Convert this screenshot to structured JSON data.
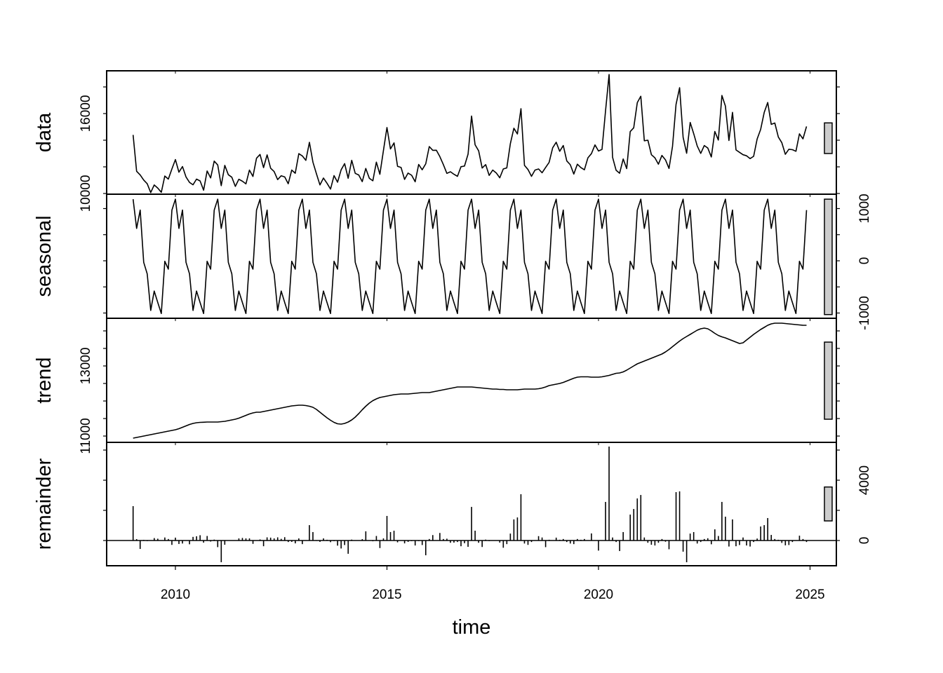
{
  "chart_data": {
    "type": "line",
    "title": "",
    "description": "STL decomposition of a monthly time series into data, seasonal, trend and remainder components",
    "xlabel": "time",
    "x_start": 2009.0,
    "frequency": 12,
    "x_ticks": [
      2010,
      2015,
      2020,
      2025
    ],
    "x_tick_labels": [
      "2010",
      "2015",
      "2020",
      "2025"
    ],
    "panels": [
      {
        "name": "data",
        "label": "data",
        "style": "line",
        "axis_side": "left",
        "tick_labels": [
          {
            "value": 10000,
            "label": "10000"
          },
          {
            "value": 16000,
            "label": "16000"
          }
        ],
        "minor_ticks": [
          10000,
          12000,
          14000,
          16000,
          18000
        ],
        "range_bar": [
          13000,
          15300
        ]
      },
      {
        "name": "seasonal",
        "label": "seasonal",
        "style": "line",
        "axis_side": "right",
        "tick_labels": [
          {
            "value": -1000,
            "label": "-1000"
          },
          {
            "value": 0,
            "label": "0"
          },
          {
            "value": 1000,
            "label": "1000"
          }
        ],
        "minor_ticks": [
          -1000,
          -500,
          0,
          500,
          1000
        ],
        "range_bar": [
          -1030,
          1180
        ]
      },
      {
        "name": "trend",
        "label": "trend",
        "style": "line",
        "axis_side": "left",
        "tick_labels": [
          {
            "value": 11000,
            "label": "11000"
          },
          {
            "value": 13000,
            "label": "13000"
          }
        ],
        "minor_ticks": [
          11000,
          11500,
          12000,
          12500,
          13000,
          13500,
          14000
        ],
        "range_bar": [
          11480,
          13680
        ]
      },
      {
        "name": "remainder",
        "label": "remainder",
        "style": "bars",
        "axis_side": "right",
        "tick_labels": [
          {
            "value": 0,
            "label": "0"
          },
          {
            "value": 4000,
            "label": "4000"
          }
        ],
        "minor_ticks": [
          0,
          2000,
          4000,
          6000
        ],
        "range_bar": [
          1300,
          3550
        ]
      }
    ],
    "seasonal_pattern": [
      1180,
      620,
      970,
      -30,
      -250,
      -950,
      -580,
      -800,
      -1010,
      -10,
      -160,
      970
    ],
    "series": [
      {
        "name": "data",
        "values": [
          14400,
          11670,
          11390,
          11010,
          10730,
          10070,
          10640,
          10400,
          10090,
          11310,
          11080,
          11840,
          12550,
          11600,
          12020,
          11240,
          10830,
          10650,
          11080,
          10940,
          10245,
          11690,
          11170,
          12430,
          12140,
          10590,
          12110,
          11410,
          11220,
          10530,
          11070,
          10920,
          10720,
          11760,
          11280,
          12650,
          12930,
          11940,
          12900,
          11900,
          11650,
          11040,
          11330,
          11240,
          10730,
          11760,
          11520,
          12990,
          12820,
          12490,
          13840,
          12350,
          11480,
          10640,
          11160,
          10770,
          10330,
          11340,
          10850,
          11780,
          12240,
          11140,
          12490,
          11510,
          11390,
          10890,
          11880,
          11140,
          10950,
          12350,
          11440,
          13230,
          14950,
          13340,
          13800,
          12040,
          11950,
          11060,
          11530,
          11370,
          10880,
          12180,
          11780,
          12230,
          13520,
          13240,
          13250,
          12770,
          12170,
          11510,
          11630,
          11440,
          11290,
          12010,
          12060,
          12950,
          15810,
          13660,
          13200,
          11910,
          12170,
          11360,
          11760,
          11540,
          11180,
          11840,
          11920,
          13750,
          14900,
          14470,
          16370,
          12110,
          11800,
          11290,
          11760,
          11840,
          11560,
          11950,
          12330,
          13430,
          13850,
          13170,
          13600,
          12440,
          12160,
          11460,
          12200,
          11940,
          11780,
          12680,
          12990,
          13650,
          13190,
          13310,
          16240,
          18930,
          12710,
          11740,
          11520,
          12590,
          11870,
          14650,
          14930,
          16820,
          17300,
          13960,
          14000,
          12910,
          12680,
          12200,
          12860,
          12520,
          11880,
          13540,
          16680,
          17940,
          14220,
          13020,
          15330,
          14490,
          13570,
          13010,
          13600,
          13410,
          12740,
          14660,
          14010,
          17360,
          16560,
          13980,
          16090,
          13270,
          13090,
          12910,
          12830,
          12620,
          12790,
          14090,
          14810,
          16090,
          16830,
          15190,
          15290,
          14240,
          13810,
          12940,
          13320,
          13290,
          13170,
          14480,
          14100,
          15030
        ]
      },
      {
        "name": "trend",
        "values": [
          10940,
          10960,
          10980,
          11000,
          11020,
          11040,
          11060,
          11080,
          11100,
          11120,
          11140,
          11160,
          11180,
          11210,
          11250,
          11290,
          11330,
          11360,
          11380,
          11390,
          11395,
          11400,
          11400,
          11400,
          11400,
          11410,
          11420,
          11440,
          11460,
          11480,
          11510,
          11550,
          11590,
          11630,
          11660,
          11680,
          11680,
          11700,
          11720,
          11740,
          11760,
          11780,
          11800,
          11820,
          11840,
          11860,
          11870,
          11880,
          11880,
          11870,
          11850,
          11820,
          11760,
          11680,
          11600,
          11520,
          11450,
          11390,
          11350,
          11340,
          11360,
          11400,
          11460,
          11540,
          11640,
          11750,
          11850,
          11940,
          12010,
          12060,
          12100,
          12120,
          12140,
          12160,
          12180,
          12190,
          12200,
          12200,
          12200,
          12210,
          12220,
          12230,
          12240,
          12240,
          12240,
          12260,
          12280,
          12300,
          12320,
          12340,
          12360,
          12380,
          12400,
          12400,
          12400,
          12400,
          12400,
          12390,
          12380,
          12370,
          12360,
          12350,
          12340,
          12340,
          12330,
          12330,
          12320,
          12320,
          12320,
          12320,
          12330,
          12340,
          12340,
          12340,
          12340,
          12350,
          12370,
          12400,
          12440,
          12460,
          12480,
          12500,
          12530,
          12570,
          12610,
          12650,
          12680,
          12690,
          12690,
          12690,
          12680,
          12680,
          12680,
          12690,
          12710,
          12730,
          12760,
          12790,
          12800,
          12830,
          12880,
          12940,
          13000,
          13060,
          13100,
          13140,
          13180,
          13220,
          13260,
          13300,
          13340,
          13400,
          13470,
          13550,
          13630,
          13710,
          13780,
          13840,
          13900,
          13960,
          14020,
          14060,
          14080,
          14060,
          14000,
          13930,
          13870,
          13830,
          13800,
          13760,
          13720,
          13680,
          13640,
          13660,
          13740,
          13820,
          13900,
          13970,
          14040,
          14100,
          14160,
          14200,
          14220,
          14220,
          14220,
          14210,
          14200,
          14190,
          14180,
          14170,
          14160,
          14160
        ]
      },
      {
        "name": "remainder",
        "values": [
          2280,
          90,
          -560,
          40,
          -40,
          -20,
          160,
          120,
          0,
          200,
          100,
          -290,
          190,
          -230,
          -200,
          -20,
          -250,
          240,
          280,
          350,
          -140,
          300,
          -70,
          60,
          -440,
          -1440,
          -280,
          0,
          10,
          0,
          140,
          170,
          140,
          140,
          -220,
          0,
          70,
          -380,
          210,
          190,
          140,
          210,
          110,
          220,
          -100,
          -90,
          -190,
          140,
          -240,
          0,
          1020,
          560,
          -30,
          -90,
          140,
          50,
          -110,
          -40,
          -340,
          -530,
          -300,
          -880,
          60,
          0,
          0,
          90,
          610,
          0,
          -50,
          300,
          -500,
          140,
          1630,
          560,
          650,
          -120,
          0,
          -190,
          -90,
          -40,
          -330,
          -40,
          -300,
          -980,
          100,
          360,
          0,
          500,
          100,
          120,
          -150,
          -140,
          -100,
          -380,
          -180,
          -420,
          2230,
          650,
          -150,
          -430,
          60,
          -40,
          0,
          0,
          -140,
          -480,
          -240,
          460,
          1400,
          1530,
          3070,
          -200,
          -290,
          -100,
          0,
          290,
          200,
          -440,
          50,
          0,
          190,
          50,
          100,
          -100,
          -200,
          -240,
          100,
          50,
          100,
          0,
          470,
          0,
          -670,
          0,
          2560,
          6230,
          200,
          -100,
          -700,
          560,
          0,
          1720,
          2090,
          2790,
          3020,
          200,
          -150,
          -280,
          -330,
          -150,
          100,
          -80,
          -580,
          0,
          3210,
          3260,
          -740,
          -1440,
          460,
          560,
          -200,
          -100,
          100,
          150,
          -250,
          740,
          300,
          2560,
          1580,
          -400,
          1400,
          -380,
          -300,
          200,
          -330,
          -400,
          -100,
          130,
          930,
          1020,
          1490,
          370,
          100,
          50,
          -160,
          -320,
          -300,
          -100,
          0,
          320,
          100,
          -100
        ]
      }
    ]
  },
  "layout": {
    "x_axis_title": "time"
  }
}
